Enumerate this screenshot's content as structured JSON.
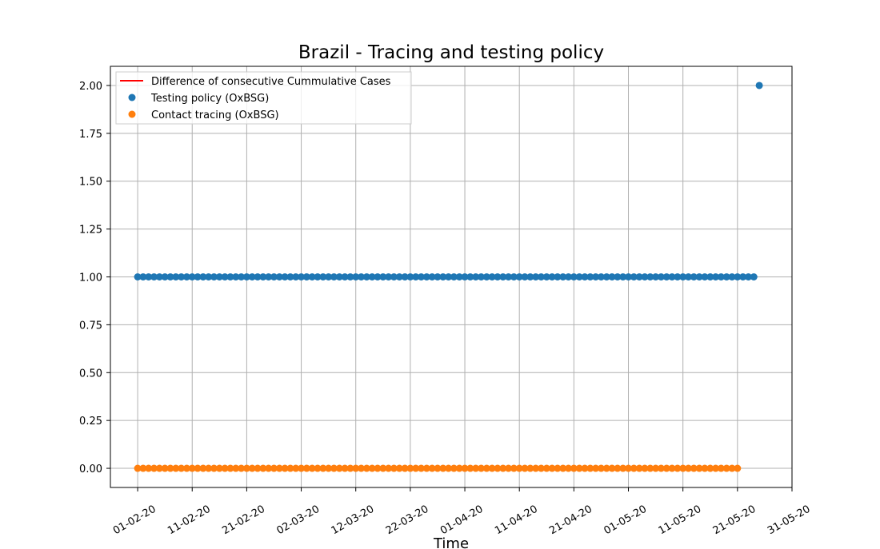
{
  "chart_data": {
    "type": "scatter",
    "title": "Brazil - Tracing and testing policy",
    "xlabel": "Time",
    "ylabel": "",
    "x_start": "2020-02-01",
    "xlim": [
      "2020-01-27",
      "2020-05-31"
    ],
    "ylim": [
      -0.1,
      2.1
    ],
    "x_ticks": [
      "01-02-20",
      "11-02-20",
      "21-02-20",
      "02-03-20",
      "12-03-20",
      "22-03-20",
      "01-04-20",
      "11-04-20",
      "21-04-20",
      "01-05-20",
      "11-05-20",
      "21-05-20",
      "31-05-20"
    ],
    "y_ticks": [
      "0.00",
      "0.25",
      "0.50",
      "0.75",
      "1.00",
      "1.25",
      "1.50",
      "1.75",
      "2.00"
    ],
    "grid": true,
    "legend_position": "top-left",
    "series": [
      {
        "name": "Difference of consecutive Cummulative Cases",
        "marker": "line",
        "color": "#ff0000",
        "values": []
      },
      {
        "name": "Testing policy (OxBSG)",
        "marker": "circle",
        "color": "#1f77b4",
        "segments": [
          {
            "from": "2020-02-01",
            "to": "2020-05-24",
            "value": 1
          },
          {
            "from": "2020-05-25",
            "to": "2020-05-25",
            "value": 2
          }
        ]
      },
      {
        "name": "Contact tracing (OxBSG)",
        "marker": "circle",
        "color": "#ff7f0e",
        "segments": [
          {
            "from": "2020-02-01",
            "to": "2020-05-21",
            "value": 0
          }
        ]
      }
    ]
  }
}
